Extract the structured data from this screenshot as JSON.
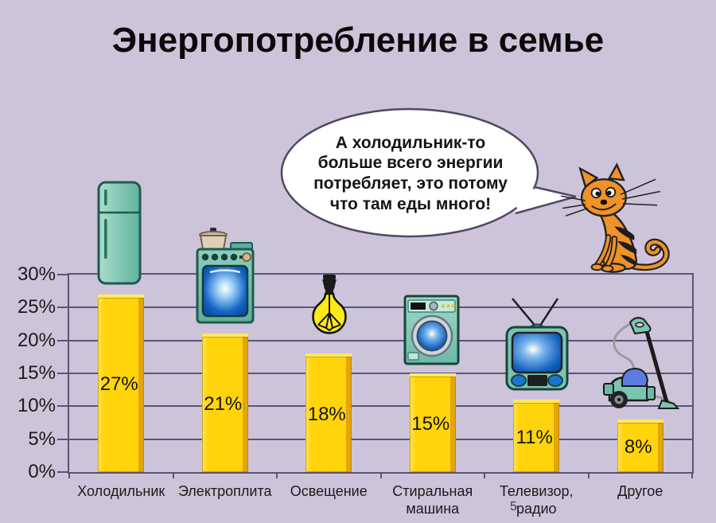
{
  "title": "Энергопотребление в семье",
  "speech_bubble": {
    "text": "А холодильник-то больше всего энергии потребляет, это потому что там еды много!"
  },
  "page_number": "5",
  "chart_data": {
    "type": "bar",
    "title": "Энергопотребление в семье",
    "categories": [
      "Холодильник",
      "Электроплита",
      "Освещение",
      "Стиральная машина",
      "Телевизор, радио",
      "Другое"
    ],
    "values": [
      27,
      21,
      18,
      15,
      11,
      8
    ],
    "value_labels": [
      "27%",
      "21%",
      "18%",
      "15%",
      "11%",
      "8%"
    ],
    "y_ticks": [
      "30%",
      "25%",
      "20%",
      "15%",
      "10%",
      "5%",
      "0%"
    ],
    "ylim": [
      0,
      30
    ],
    "ylabel": "",
    "xlabel": "",
    "grid": true,
    "legend": "none",
    "icons": [
      "refrigerator",
      "electric-stove",
      "light-bulb",
      "washing-machine",
      "tv-set",
      "vacuum-cleaner"
    ]
  },
  "colors": {
    "background": "#cdc4da",
    "grid": "#5a5477",
    "bar": "#ffd40a",
    "bar_shadow": "#e2a50e",
    "bar_top": "#ffe967",
    "text": "#141414",
    "bubble_outline": "#4e4963",
    "bubble_fill": "#ffffff",
    "appliance_teal": "#7cc4b2",
    "screen_blue": "#1460bf",
    "cat_orange": "#ef9228"
  }
}
